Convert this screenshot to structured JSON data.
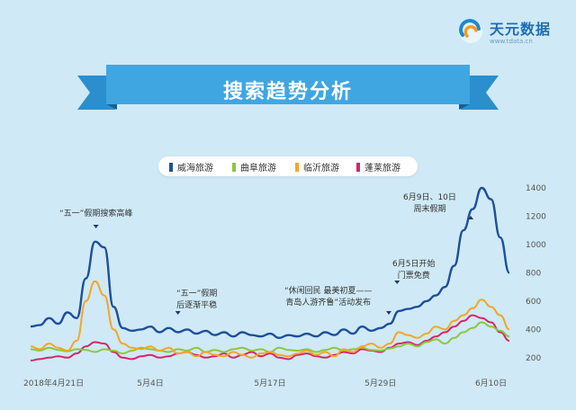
{
  "brand": {
    "name": "天元数据",
    "url": "www.tdata.cn"
  },
  "title": "搜索趋势分析",
  "annotations": [
    {
      "id": "peak",
      "text": "“五一”假期搜索高峰"
    },
    {
      "id": "after1",
      "text": "“五一”假期"
    },
    {
      "id": "after2",
      "text": "后逐渐平稳"
    },
    {
      "id": "promo1",
      "text": "“休闲回民 最美初夏——"
    },
    {
      "id": "promo2",
      "text": "青岛人游齐鲁”活动发布"
    },
    {
      "id": "free1",
      "text": "6月5日开始"
    },
    {
      "id": "free2",
      "text": "门票免费"
    },
    {
      "id": "wk1",
      "text": "6月9日、10日"
    },
    {
      "id": "wk2",
      "text": "周末假期"
    }
  ],
  "chart_data": {
    "type": "line",
    "x": [
      "2018-04-21",
      "2018-04-22",
      "2018-04-23",
      "2018-04-24",
      "2018-04-25",
      "2018-04-26",
      "2018-04-27",
      "2018-04-28",
      "2018-04-29",
      "2018-04-30",
      "2018-05-01",
      "2018-05-02",
      "2018-05-03",
      "2018-05-04",
      "2018-05-05",
      "2018-05-06",
      "2018-05-07",
      "2018-05-08",
      "2018-05-09",
      "2018-05-10",
      "2018-05-11",
      "2018-05-12",
      "2018-05-13",
      "2018-05-14",
      "2018-05-15",
      "2018-05-16",
      "2018-05-17",
      "2018-05-18",
      "2018-05-19",
      "2018-05-20",
      "2018-05-21",
      "2018-05-22",
      "2018-05-23",
      "2018-05-24",
      "2018-05-25",
      "2018-05-26",
      "2018-05-27",
      "2018-05-28",
      "2018-05-29",
      "2018-05-30",
      "2018-05-31",
      "2018-06-01",
      "2018-06-02",
      "2018-06-03",
      "2018-06-04",
      "2018-06-05",
      "2018-06-06",
      "2018-06-07",
      "2018-06-08",
      "2018-06-09",
      "2018-06-10",
      "2018-06-11",
      "2018-06-12"
    ],
    "x_ticks": [
      {
        "value": "2018-04-21",
        "label": "2018年4月21日"
      },
      {
        "value": "2018-05-04",
        "label": "5月4日"
      },
      {
        "value": "2018-05-17",
        "label": "5月17日"
      },
      {
        "value": "2018-05-29",
        "label": "5月29日"
      },
      {
        "value": "2018-06-10",
        "label": "6月10日"
      }
    ],
    "y_ticks": [
      200,
      400,
      600,
      800,
      1000,
      1200,
      1400
    ],
    "ylim": [
      110,
      1470
    ],
    "grid": false,
    "legend_position": "top",
    "series": [
      {
        "name": "威海旅游",
        "color": "#1d4f9a",
        "values": [
          420,
          430,
          480,
          440,
          520,
          480,
          760,
          1020,
          980,
          560,
          410,
          390,
          400,
          420,
          380,
          410,
          380,
          400,
          370,
          390,
          360,
          380,
          350,
          380,
          360,
          350,
          370,
          340,
          360,
          350,
          370,
          350,
          380,
          360,
          400,
          370,
          420,
          390,
          410,
          440,
          530,
          545,
          560,
          600,
          640,
          700,
          850,
          1100,
          1250,
          1400,
          1320,
          1050,
          800
        ]
      },
      {
        "name": "曲阜旅游",
        "color": "#8cc63f",
        "values": [
          260,
          250,
          270,
          255,
          245,
          260,
          255,
          240,
          260,
          250,
          230,
          250,
          270,
          260,
          250,
          240,
          260,
          250,
          270,
          240,
          255,
          240,
          260,
          270,
          250,
          260,
          240,
          270,
          255,
          250,
          260,
          240,
          255,
          270,
          250,
          260,
          270,
          255,
          250,
          265,
          280,
          300,
          280,
          310,
          330,
          300,
          340,
          380,
          410,
          450,
          420,
          390,
          350
        ]
      },
      {
        "name": "临沂旅游",
        "color": "#f5a623",
        "values": [
          280,
          260,
          300,
          270,
          250,
          320,
          600,
          740,
          640,
          400,
          300,
          270,
          260,
          280,
          250,
          270,
          230,
          240,
          210,
          240,
          220,
          210,
          240,
          220,
          200,
          230,
          240,
          220,
          210,
          230,
          250,
          220,
          240,
          210,
          260,
          240,
          280,
          300,
          270,
          300,
          380,
          360,
          340,
          370,
          420,
          400,
          460,
          500,
          550,
          610,
          560,
          500,
          400
        ]
      },
      {
        "name": "蓬莱旅游",
        "color": "#d6266a",
        "values": [
          180,
          190,
          200,
          210,
          200,
          230,
          280,
          310,
          300,
          240,
          200,
          190,
          210,
          220,
          200,
          210,
          230,
          240,
          220,
          200,
          210,
          230,
          200,
          220,
          240,
          210,
          230,
          200,
          190,
          220,
          230,
          210,
          200,
          220,
          240,
          230,
          260,
          250,
          240,
          270,
          300,
          310,
          290,
          320,
          350,
          380,
          420,
          460,
          500,
          480,
          450,
          380,
          320
        ]
      }
    ]
  }
}
